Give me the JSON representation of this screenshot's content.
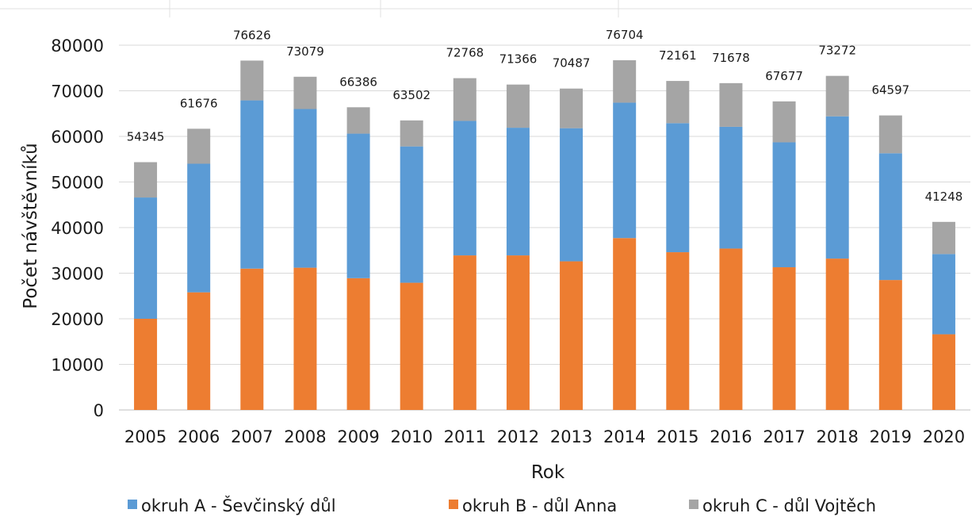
{
  "chart_data": {
    "type": "bar",
    "stacked": true,
    "title": "",
    "xlabel": "Rok",
    "ylabel": "Počet návštěvníků",
    "ylim": [
      0,
      80000
    ],
    "yticks": [
      0,
      10000,
      20000,
      30000,
      40000,
      50000,
      60000,
      70000,
      80000
    ],
    "grid": true,
    "legend_position": "bottom",
    "categories": [
      "2005",
      "2006",
      "2007",
      "2008",
      "2009",
      "2010",
      "2011",
      "2012",
      "2013",
      "2014",
      "2015",
      "2016",
      "2017",
      "2018",
      "2019",
      "2020"
    ],
    "series": [
      {
        "name": "okruh A - Ševčinský důl",
        "color": "#5b9bd5",
        "values": [
          26600,
          28200,
          36900,
          34800,
          31700,
          29900,
          29500,
          28000,
          29200,
          29700,
          28300,
          26700,
          27400,
          31200,
          27800,
          17600
        ]
      },
      {
        "name": "okruh B - důl Anna",
        "color": "#ed7d31",
        "values": [
          20000,
          25800,
          31000,
          31200,
          28900,
          27900,
          33900,
          33900,
          32600,
          37700,
          34600,
          35400,
          31300,
          33200,
          28500,
          16600
        ]
      },
      {
        "name": "okruh C - důl Vojtěch",
        "color": "#a5a5a5",
        "values": [
          7745,
          7676,
          8726,
          7079,
          5786,
          5702,
          9368,
          9466,
          8687,
          9304,
          9261,
          9578,
          8977,
          8872,
          8297,
          7048
        ]
      }
    ],
    "stack_order": [
      "okruh B - důl Anna",
      "okruh A - Ševčinský důl",
      "okruh C - důl Vojtěch"
    ],
    "totals": [
      "54345",
      "61676",
      "76626",
      "73079",
      "66386",
      "63502",
      "72768",
      "71366",
      "70487",
      "76704",
      "72161",
      "71678",
      "67677",
      "73272",
      "64597",
      "41248"
    ]
  }
}
